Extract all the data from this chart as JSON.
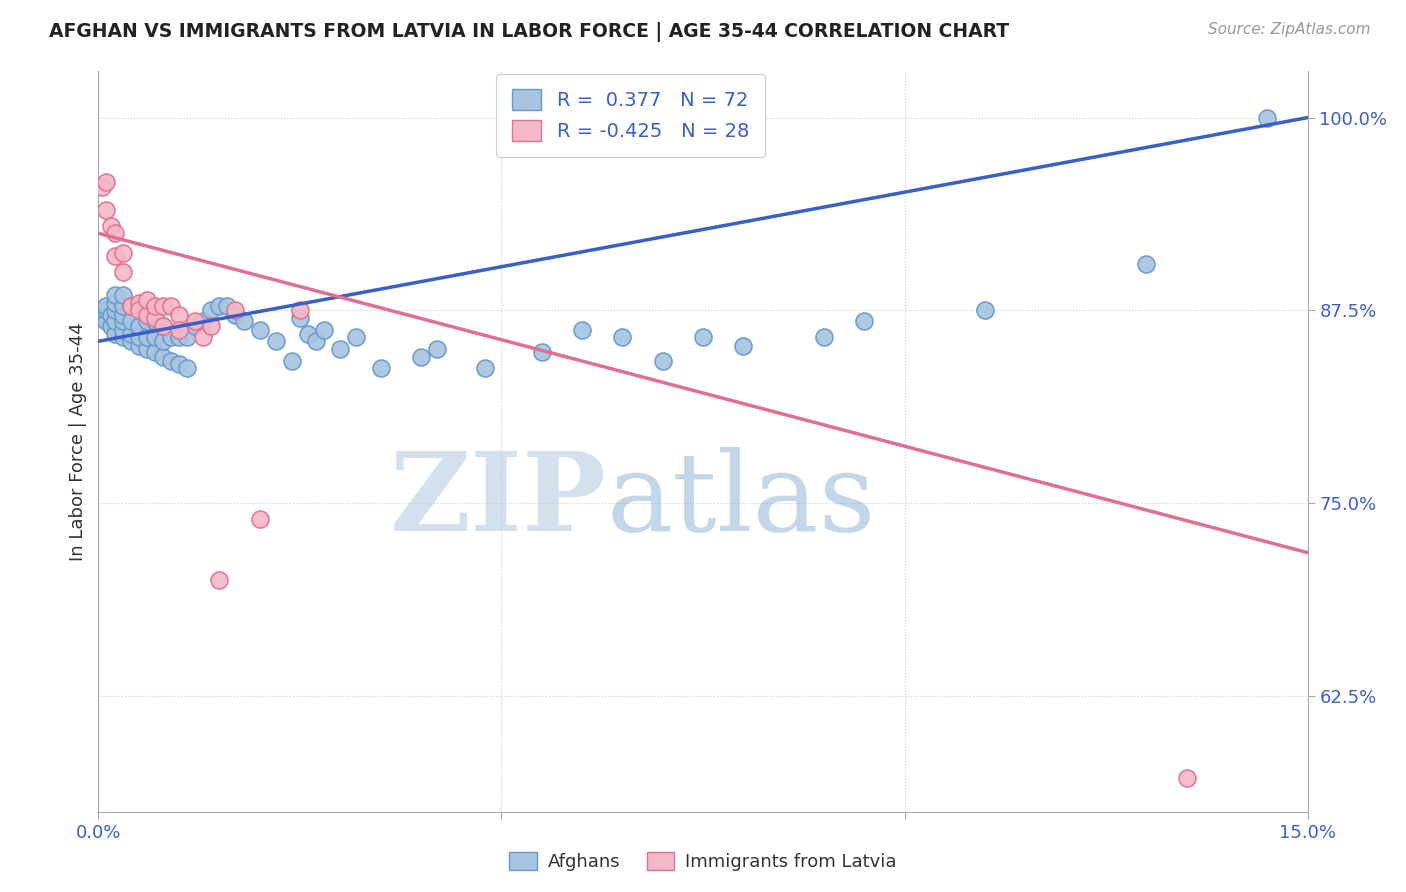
{
  "title": "AFGHAN VS IMMIGRANTS FROM LATVIA IN LABOR FORCE | AGE 35-44 CORRELATION CHART",
  "source": "Source: ZipAtlas.com",
  "ylabel": "In Labor Force | Age 35-44",
  "x_min": 0.0,
  "x_max": 0.15,
  "y_min": 0.55,
  "y_max": 1.03,
  "y_ticks": [
    0.625,
    0.75,
    0.875,
    1.0
  ],
  "y_tick_labels": [
    "62.5%",
    "75.0%",
    "87.5%",
    "100.0%"
  ],
  "x_ticks": [
    0.0,
    0.05,
    0.1,
    0.15
  ],
  "x_tick_labels": [
    "0.0%",
    "",
    "",
    "15.0%"
  ],
  "afghan_color": "#a8c4e0",
  "afghan_edge_color": "#6699cc",
  "latvia_color": "#f5b8c8",
  "latvia_edge_color": "#e07090",
  "blue_line_color": "#3a5fc8",
  "pink_line_color": "#e07090",
  "R_afghan": 0.377,
  "N_afghan": 72,
  "R_latvia": -0.425,
  "N_latvia": 28,
  "legend_label_afghan": "Afghans",
  "legend_label_latvia": "Immigrants from Latvia",
  "watermark_text": "ZIPatlas",
  "watermark_color": "#c8d8ea",
  "blue_line_x0": 0.0,
  "blue_line_y0": 0.855,
  "blue_line_x1": 0.15,
  "blue_line_y1": 1.0,
  "pink_line_x0": 0.0,
  "pink_line_y0": 0.925,
  "pink_line_x1": 0.15,
  "pink_line_y1": 0.718,
  "afghan_points_x": [
    0.0005,
    0.0007,
    0.001,
    0.001,
    0.001,
    0.0015,
    0.0015,
    0.002,
    0.002,
    0.002,
    0.002,
    0.002,
    0.003,
    0.003,
    0.003,
    0.003,
    0.003,
    0.003,
    0.004,
    0.004,
    0.004,
    0.004,
    0.005,
    0.005,
    0.005,
    0.005,
    0.006,
    0.006,
    0.006,
    0.007,
    0.007,
    0.007,
    0.008,
    0.008,
    0.008,
    0.009,
    0.009,
    0.01,
    0.01,
    0.011,
    0.011,
    0.012,
    0.013,
    0.014,
    0.015,
    0.016,
    0.017,
    0.018,
    0.02,
    0.022,
    0.024,
    0.025,
    0.026,
    0.027,
    0.028,
    0.03,
    0.032,
    0.035,
    0.04,
    0.042,
    0.048,
    0.055,
    0.06,
    0.065,
    0.07,
    0.075,
    0.08,
    0.09,
    0.095,
    0.11,
    0.13,
    0.145
  ],
  "afghan_points_y": [
    0.87,
    0.872,
    0.868,
    0.875,
    0.878,
    0.865,
    0.872,
    0.86,
    0.868,
    0.875,
    0.88,
    0.885,
    0.858,
    0.862,
    0.868,
    0.872,
    0.878,
    0.885,
    0.855,
    0.86,
    0.868,
    0.878,
    0.852,
    0.858,
    0.865,
    0.878,
    0.85,
    0.858,
    0.868,
    0.848,
    0.858,
    0.868,
    0.845,
    0.855,
    0.865,
    0.842,
    0.858,
    0.84,
    0.858,
    0.838,
    0.858,
    0.865,
    0.868,
    0.875,
    0.878,
    0.878,
    0.872,
    0.868,
    0.862,
    0.855,
    0.842,
    0.87,
    0.86,
    0.855,
    0.862,
    0.85,
    0.858,
    0.838,
    0.845,
    0.85,
    0.838,
    0.848,
    0.862,
    0.858,
    0.842,
    0.858,
    0.852,
    0.858,
    0.868,
    0.875,
    0.905,
    1.0
  ],
  "latvia_points_x": [
    0.0005,
    0.001,
    0.001,
    0.0015,
    0.002,
    0.002,
    0.003,
    0.003,
    0.004,
    0.005,
    0.005,
    0.006,
    0.006,
    0.007,
    0.007,
    0.008,
    0.008,
    0.009,
    0.01,
    0.01,
    0.012,
    0.013,
    0.014,
    0.015,
    0.017,
    0.02,
    0.025,
    0.135
  ],
  "latvia_points_y": [
    0.955,
    0.94,
    0.958,
    0.93,
    0.91,
    0.925,
    0.9,
    0.912,
    0.878,
    0.88,
    0.875,
    0.872,
    0.882,
    0.87,
    0.878,
    0.878,
    0.865,
    0.878,
    0.872,
    0.862,
    0.868,
    0.858,
    0.865,
    0.7,
    0.875,
    0.74,
    0.875,
    0.572
  ]
}
